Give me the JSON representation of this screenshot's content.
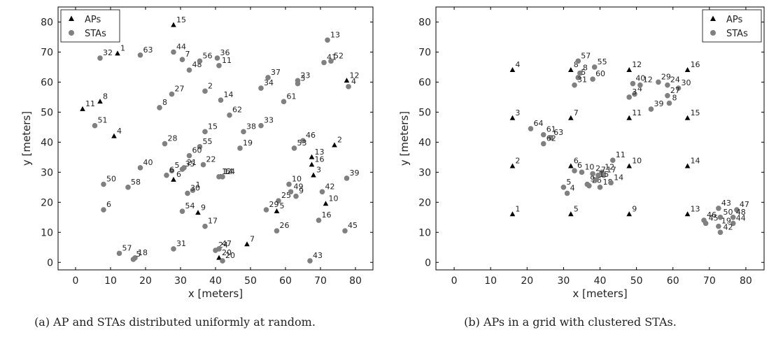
{
  "chart_data": [
    {
      "type": "scatter",
      "caption": "(a) AP and STAs distributed uniformly at random.",
      "xlabel": "x [meters]",
      "ylabel": "y [meters]",
      "xlim": [
        -5,
        85
      ],
      "ylim": [
        -2.5,
        85
      ],
      "xticks": [
        0,
        10,
        20,
        30,
        40,
        50,
        60,
        70,
        80
      ],
      "yticks": [
        0,
        10,
        20,
        30,
        40,
        50,
        60,
        70,
        80
      ],
      "legend": "top-left",
      "series": [
        {
          "name": "APs",
          "marker": "triangle",
          "color": "#000000",
          "points": [
            {
              "id": "1",
              "x": 12,
              "y": 69.5
            },
            {
              "id": "2",
              "x": 74,
              "y": 39
            },
            {
              "id": "3",
              "x": 68,
              "y": 29
            },
            {
              "id": "4",
              "x": 11,
              "y": 42
            },
            {
              "id": "5",
              "x": 57.5,
              "y": 17
            },
            {
              "id": "6",
              "x": 28,
              "y": 27.5
            },
            {
              "id": "7",
              "x": 49,
              "y": 6
            },
            {
              "id": "8",
              "x": 7,
              "y": 53.5
            },
            {
              "id": "9",
              "x": 35,
              "y": 16.5
            },
            {
              "id": "10",
              "x": 71.5,
              "y": 19.5
            },
            {
              "id": "11",
              "x": 2,
              "y": 51
            },
            {
              "id": "12",
              "x": 77.5,
              "y": 60.5
            },
            {
              "id": "13",
              "x": 67.5,
              "y": 35
            },
            {
              "id": "14",
              "x": 41.5,
              "y": 28.5
            },
            {
              "id": "15",
              "x": 28,
              "y": 79
            },
            {
              "id": "16",
              "x": 67.5,
              "y": 32.5
            },
            {
              "id": "20",
              "x": 41,
              "y": 1.5
            }
          ]
        },
        {
          "name": "STAs",
          "marker": "circle",
          "color": "#808080",
          "points": [
            {
              "id": "1",
              "x": 33.5,
              "y": 24
            },
            {
              "id": "2",
              "x": 37,
              "y": 57
            },
            {
              "id": "3",
              "x": 63.5,
              "y": 59.5
            },
            {
              "id": "4",
              "x": 78,
              "y": 58.5
            },
            {
              "id": "5",
              "x": 27.5,
              "y": 30.5
            },
            {
              "id": "6",
              "x": 8,
              "y": 17.5
            },
            {
              "id": "7",
              "x": 30.5,
              "y": 67.5
            },
            {
              "id": "8",
              "x": 24,
              "y": 51.5
            },
            {
              "id": "9",
              "x": 63,
              "y": 22
            },
            {
              "id": "10",
              "x": 61,
              "y": 26
            },
            {
              "id": "11",
              "x": 41,
              "y": 65.5
            },
            {
              "id": "12",
              "x": 41,
              "y": 28.5
            },
            {
              "id": "13",
              "x": 72,
              "y": 74
            },
            {
              "id": "14",
              "x": 41.5,
              "y": 54
            },
            {
              "id": "15",
              "x": 37,
              "y": 43.5
            },
            {
              "id": "16",
              "x": 69.5,
              "y": 14
            },
            {
              "id": "17",
              "x": 37,
              "y": 12
            },
            {
              "id": "18",
              "x": 17,
              "y": 1.5
            },
            {
              "id": "19",
              "x": 47,
              "y": 38
            },
            {
              "id": "20",
              "x": 42,
              "y": 0.5
            },
            {
              "id": "21",
              "x": 31,
              "y": 31.5
            },
            {
              "id": "22",
              "x": 36.5,
              "y": 32.5
            },
            {
              "id": "23",
              "x": 63.5,
              "y": 60.5
            },
            {
              "id": "24",
              "x": 40,
              "y": 4
            },
            {
              "id": "25",
              "x": 58,
              "y": 20.5
            },
            {
              "id": "26",
              "x": 57.5,
              "y": 10.5
            },
            {
              "id": "27",
              "x": 27.5,
              "y": 56
            },
            {
              "id": "28",
              "x": 25.5,
              "y": 39.5
            },
            {
              "id": "29",
              "x": 54.5,
              "y": 17.5
            },
            {
              "id": "30",
              "x": 32,
              "y": 23
            },
            {
              "id": "31",
              "x": 28,
              "y": 4.5
            },
            {
              "id": "32",
              "x": 7,
              "y": 68
            },
            {
              "id": "33",
              "x": 53,
              "y": 45.5
            },
            {
              "id": "34",
              "x": 53,
              "y": 58
            },
            {
              "id": "35",
              "x": 30.5,
              "y": 31
            },
            {
              "id": "36",
              "x": 40.5,
              "y": 68
            },
            {
              "id": "37",
              "x": 55,
              "y": 61.5
            },
            {
              "id": "38",
              "x": 48,
              "y": 43.5
            },
            {
              "id": "39",
              "x": 77.5,
              "y": 28
            },
            {
              "id": "40",
              "x": 18.5,
              "y": 31.5
            },
            {
              "id": "41",
              "x": 71,
              "y": 66.5
            },
            {
              "id": "42",
              "x": 70.5,
              "y": 23.5
            },
            {
              "id": "43",
              "x": 67,
              "y": 0.5
            },
            {
              "id": "44",
              "x": 28,
              "y": 70
            },
            {
              "id": "45",
              "x": 77,
              "y": 10.5
            },
            {
              "id": "46",
              "x": 65,
              "y": 40.5
            },
            {
              "id": "47",
              "x": 41,
              "y": 4.5
            },
            {
              "id": "48",
              "x": 32.5,
              "y": 64
            },
            {
              "id": "49",
              "x": 61.5,
              "y": 23.5
            },
            {
              "id": "50",
              "x": 8,
              "y": 26
            },
            {
              "id": "51",
              "x": 5.5,
              "y": 45.5
            },
            {
              "id": "52",
              "x": 73,
              "y": 67
            },
            {
              "id": "53",
              "x": 62.5,
              "y": 38
            },
            {
              "id": "54",
              "x": 30.5,
              "y": 17
            },
            {
              "id": "55",
              "x": 35.5,
              "y": 38.5
            },
            {
              "id": "56",
              "x": 35.5,
              "y": 67
            },
            {
              "id": "57",
              "x": 12.5,
              "y": 3
            },
            {
              "id": "58",
              "x": 15,
              "y": 25
            },
            {
              "id": "60",
              "x": 32.5,
              "y": 35.5
            },
            {
              "id": "61",
              "x": 59.5,
              "y": 53.5
            },
            {
              "id": "62",
              "x": 44,
              "y": 49
            },
            {
              "id": "63",
              "x": 18.5,
              "y": 69
            },
            {
              "id": "64",
              "x": 42,
              "y": 28.5
            },
            {
              "id": "5",
              "x": 16.5,
              "y": 1
            },
            {
              "id": "6",
              "x": 26,
              "y": 29
            }
          ]
        }
      ]
    },
    {
      "type": "scatter",
      "caption": "(b) APs in a grid with clustered STAs.",
      "xlabel": "x [meters]",
      "ylabel": "y [meters]",
      "xlim": [
        -5,
        85
      ],
      "ylim": [
        -2.5,
        85
      ],
      "xticks": [
        0,
        10,
        20,
        30,
        40,
        50,
        60,
        70,
        80
      ],
      "yticks": [
        0,
        10,
        20,
        30,
        40,
        50,
        60,
        70,
        80
      ],
      "legend": "top-right",
      "series": [
        {
          "name": "APs",
          "marker": "triangle",
          "color": "#000000",
          "points": [
            {
              "id": "1",
              "x": 16,
              "y": 16
            },
            {
              "id": "2",
              "x": 16,
              "y": 32
            },
            {
              "id": "3",
              "x": 16,
              "y": 48
            },
            {
              "id": "4",
              "x": 16,
              "y": 64
            },
            {
              "id": "5",
              "x": 32,
              "y": 16
            },
            {
              "id": "6",
              "x": 32,
              "y": 32
            },
            {
              "id": "7",
              "x": 32,
              "y": 48
            },
            {
              "id": "8",
              "x": 32,
              "y": 64
            },
            {
              "id": "9",
              "x": 48,
              "y": 16
            },
            {
              "id": "10",
              "x": 48,
              "y": 32
            },
            {
              "id": "11",
              "x": 48,
              "y": 48
            },
            {
              "id": "12",
              "x": 48,
              "y": 64
            },
            {
              "id": "13",
              "x": 64,
              "y": 16
            },
            {
              "id": "14",
              "x": 64,
              "y": 32
            },
            {
              "id": "15",
              "x": 64,
              "y": 48
            },
            {
              "id": "16",
              "x": 64,
              "y": 64
            }
          ]
        },
        {
          "name": "STAs",
          "marker": "circle",
          "color": "#808080",
          "points": [
            {
              "id": "57",
              "x": 34,
              "y": 67
            },
            {
              "id": "8",
              "x": 34.5,
              "y": 63
            },
            {
              "id": "5",
              "x": 34,
              "y": 61.5
            },
            {
              "id": "31",
              "x": 33,
              "y": 59
            },
            {
              "id": "60",
              "x": 38,
              "y": 61
            },
            {
              "id": "55",
              "x": 38.5,
              "y": 65
            },
            {
              "id": "4",
              "x": 49.5,
              "y": 56
            },
            {
              "id": "40",
              "x": 49,
              "y": 59.5
            },
            {
              "id": "12",
              "x": 51,
              "y": 59
            },
            {
              "id": "29",
              "x": 56,
              "y": 60
            },
            {
              "id": "24",
              "x": 58.5,
              "y": 59
            },
            {
              "id": "30",
              "x": 61.5,
              "y": 58
            },
            {
              "id": "27",
              "x": 58.5,
              "y": 55.5
            },
            {
              "id": "8",
              "x": 59,
              "y": 53
            },
            {
              "id": "39",
              "x": 54,
              "y": 51
            },
            {
              "id": "3",
              "x": 48,
              "y": 55
            },
            {
              "id": "64",
              "x": 21,
              "y": 44.5
            },
            {
              "id": "61",
              "x": 24.5,
              "y": 42.5
            },
            {
              "id": "63",
              "x": 26.5,
              "y": 41.5
            },
            {
              "id": "62",
              "x": 24.5,
              "y": 39.5
            },
            {
              "id": "6",
              "x": 33,
              "y": 30.5
            },
            {
              "id": "10",
              "x": 35,
              "y": 30
            },
            {
              "id": "12",
              "x": 40.5,
              "y": 30
            },
            {
              "id": "11",
              "x": 43.5,
              "y": 34
            },
            {
              "id": "2",
              "x": 38,
              "y": 29.5
            },
            {
              "id": "7",
              "x": 39.5,
              "y": 29
            },
            {
              "id": "17",
              "x": 41,
              "y": 29
            },
            {
              "id": "9",
              "x": 36.5,
              "y": 26
            },
            {
              "id": "26",
              "x": 37,
              "y": 25.5
            },
            {
              "id": "15",
              "x": 39,
              "y": 27.5
            },
            {
              "id": "18",
              "x": 40,
              "y": 25
            },
            {
              "id": "14",
              "x": 43,
              "y": 26.5
            },
            {
              "id": "5",
              "x": 30,
              "y": 25
            },
            {
              "id": "4",
              "x": 31,
              "y": 23
            },
            {
              "id": "43",
              "x": 72.5,
              "y": 18
            },
            {
              "id": "47",
              "x": 77.5,
              "y": 17.5
            },
            {
              "id": "46",
              "x": 68.5,
              "y": 14
            },
            {
              "id": "45",
              "x": 69,
              "y": 13
            },
            {
              "id": "50",
              "x": 73,
              "y": 15
            },
            {
              "id": "48",
              "x": 76.5,
              "y": 15
            },
            {
              "id": "19",
              "x": 72.5,
              "y": 12
            },
            {
              "id": "44",
              "x": 76.5,
              "y": 13
            },
            {
              "id": "42",
              "x": 73,
              "y": 10
            }
          ]
        }
      ]
    }
  ]
}
